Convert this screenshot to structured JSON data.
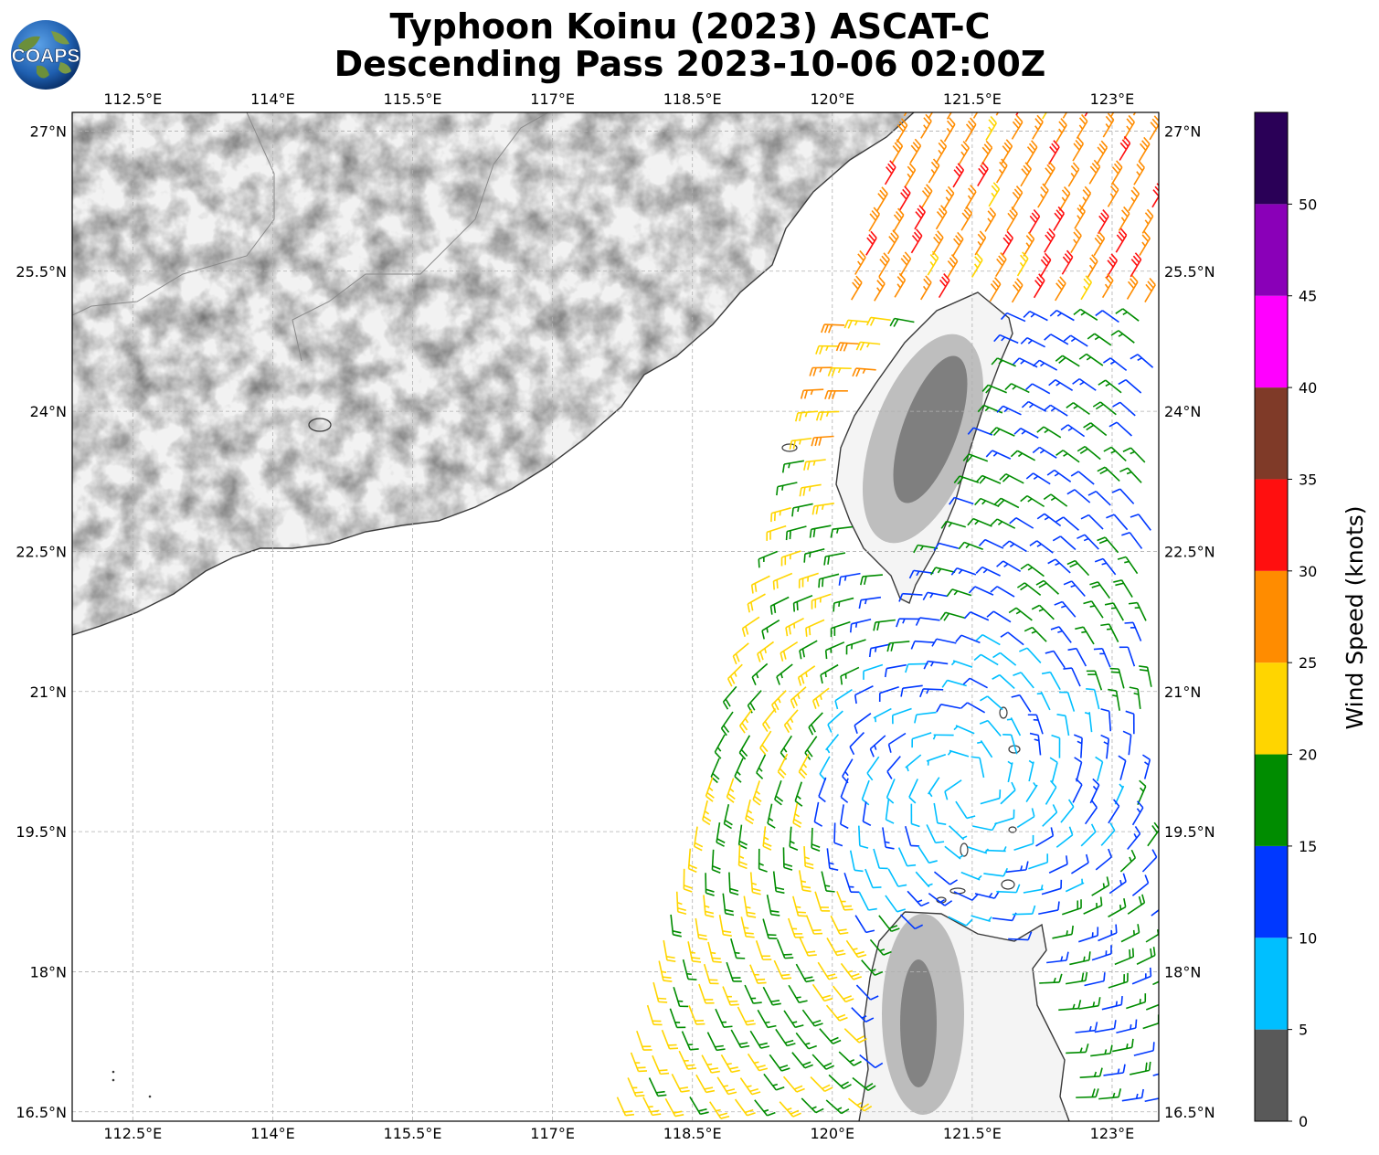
{
  "title_line1": "Typhoon Koinu (2023) ASCAT-C",
  "title_line2": "Descending Pass 2023-10-06 02:00Z",
  "logo_text": "COAPS",
  "map": {
    "lon_ticks": [
      "112.5°E",
      "114°E",
      "115.5°E",
      "117°E",
      "118.5°E",
      "120°E",
      "121.5°E",
      "123°E"
    ],
    "lat_ticks": [
      "27°N",
      "25.5°N",
      "24°N",
      "22.5°N",
      "21°N",
      "19.5°N",
      "18°N",
      "16.5°N"
    ],
    "lon_range": [
      111.85,
      123.5
    ],
    "lat_range": [
      16.4,
      27.2
    ],
    "gridlines": true
  },
  "colorbar": {
    "label": "Wind Speed (knots)",
    "ticks": [
      "0",
      "5",
      "10",
      "15",
      "20",
      "25",
      "30",
      "35",
      "40",
      "45",
      "50"
    ],
    "bins": [
      {
        "min": 0,
        "max": 5,
        "color": "#595959"
      },
      {
        "min": 5,
        "max": 10,
        "color": "#00bfff"
      },
      {
        "min": 10,
        "max": 15,
        "color": "#0038ff"
      },
      {
        "min": 15,
        "max": 20,
        "color": "#008c00"
      },
      {
        "min": 20,
        "max": 25,
        "color": "#ffd500"
      },
      {
        "min": 25,
        "max": 30,
        "color": "#ff8c00"
      },
      {
        "min": 30,
        "max": 35,
        "color": "#ff0f0f"
      },
      {
        "min": 35,
        "max": 40,
        "color": "#7f3a28"
      },
      {
        "min": 40,
        "max": 45,
        "color": "#ff00ff"
      },
      {
        "min": 45,
        "max": 50,
        "color": "#8a00b8"
      },
      {
        "min": 50,
        "max": 55,
        "color": "#2a0057"
      }
    ]
  }
}
